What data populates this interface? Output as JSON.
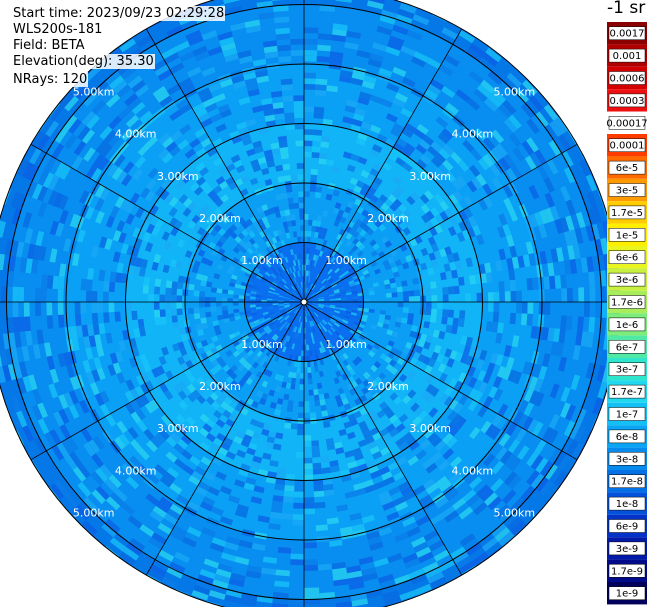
{
  "header": {
    "start_time": "Start time: 2023/09/23 02:29:28",
    "instrument": "WLS200s-181",
    "field": "Field: BETA",
    "elevation": "Elevation(deg): 35.30",
    "nrays": "NRays: 120"
  },
  "colorbar": {
    "title": "-1 sr",
    "entries": [
      {
        "label": "0.0017",
        "color": "#8b0000"
      },
      {
        "label": "0.001",
        "color": "#b00000"
      },
      {
        "label": "0.0006",
        "color": "#d40000"
      },
      {
        "label": "0.0003",
        "color": "#ee1010"
      },
      {
        "label": "0.00017",
        "color": "#ffffff"
      },
      {
        "label": "0.0001",
        "color": "#ff3c00"
      },
      {
        "label": "6e-5",
        "color": "#ff6a00"
      },
      {
        "label": "3e-5",
        "color": "#ff9900"
      },
      {
        "label": "1.7e-5",
        "color": "#ffcc00"
      },
      {
        "label": "1e-5",
        "color": "#ffee00"
      },
      {
        "label": "6e-6",
        "color": "#e8f51f"
      },
      {
        "label": "3e-6",
        "color": "#c8f040"
      },
      {
        "label": "1.7e-6",
        "color": "#a8ee5a"
      },
      {
        "label": "1e-6",
        "color": "#7cec7a"
      },
      {
        "label": "6e-7",
        "color": "#4fe8a4"
      },
      {
        "label": "3e-7",
        "color": "#2ee6cc"
      },
      {
        "label": "1.7e-7",
        "color": "#22d8ee"
      },
      {
        "label": "1e-7",
        "color": "#12c0f5"
      },
      {
        "label": "6e-8",
        "color": "#0aa6f5"
      },
      {
        "label": "3e-8",
        "color": "#068aee"
      },
      {
        "label": "1.7e-8",
        "color": "#0470e6"
      },
      {
        "label": "1e-8",
        "color": "#0452dc"
      },
      {
        "label": "6e-9",
        "color": "#0332c8"
      },
      {
        "label": "3e-9",
        "color": "#021aaa"
      },
      {
        "label": "1.7e-9",
        "color": "#010a88"
      },
      {
        "label": "1e-9",
        "color": "#00005c"
      }
    ]
  },
  "chart_data": {
    "type": "heatmap",
    "projection": "polar (PPI scan)",
    "nrays": 120,
    "ring_labels": [
      "1.00km",
      "2.00km",
      "3.00km",
      "4.00km",
      "5.00km"
    ],
    "ring_ranges_km": [
      1,
      2,
      3,
      4,
      5
    ],
    "spoke_angles_deg": [
      0,
      30,
      60,
      90,
      120,
      150,
      180,
      210,
      240,
      270,
      300,
      330
    ],
    "range_bands": [
      {
        "from_km": 0,
        "to_km": 1.0,
        "level": "1.7e-8",
        "color": "#0a6ef0"
      },
      {
        "from_km": 1.0,
        "to_km": 2.0,
        "level": "6e-8",
        "color": "#0a9ef5"
      },
      {
        "from_km": 2.0,
        "to_km": 3.0,
        "level": "1e-7",
        "color": "#12b4f8"
      },
      {
        "from_km": 3.0,
        "to_km": 4.0,
        "level": "6e-8",
        "color": "#0aa0f5"
      },
      {
        "from_km": 4.0,
        "to_km": 5.0,
        "level": "3e-8",
        "color": "#078ef0"
      },
      {
        "from_km": 5.0,
        "to_km": 5.3,
        "level": "1.7e-8",
        "color": "#0578e8"
      }
    ],
    "colorscale": "jet, log 1e-9 to 0.0017 sr^-1"
  }
}
